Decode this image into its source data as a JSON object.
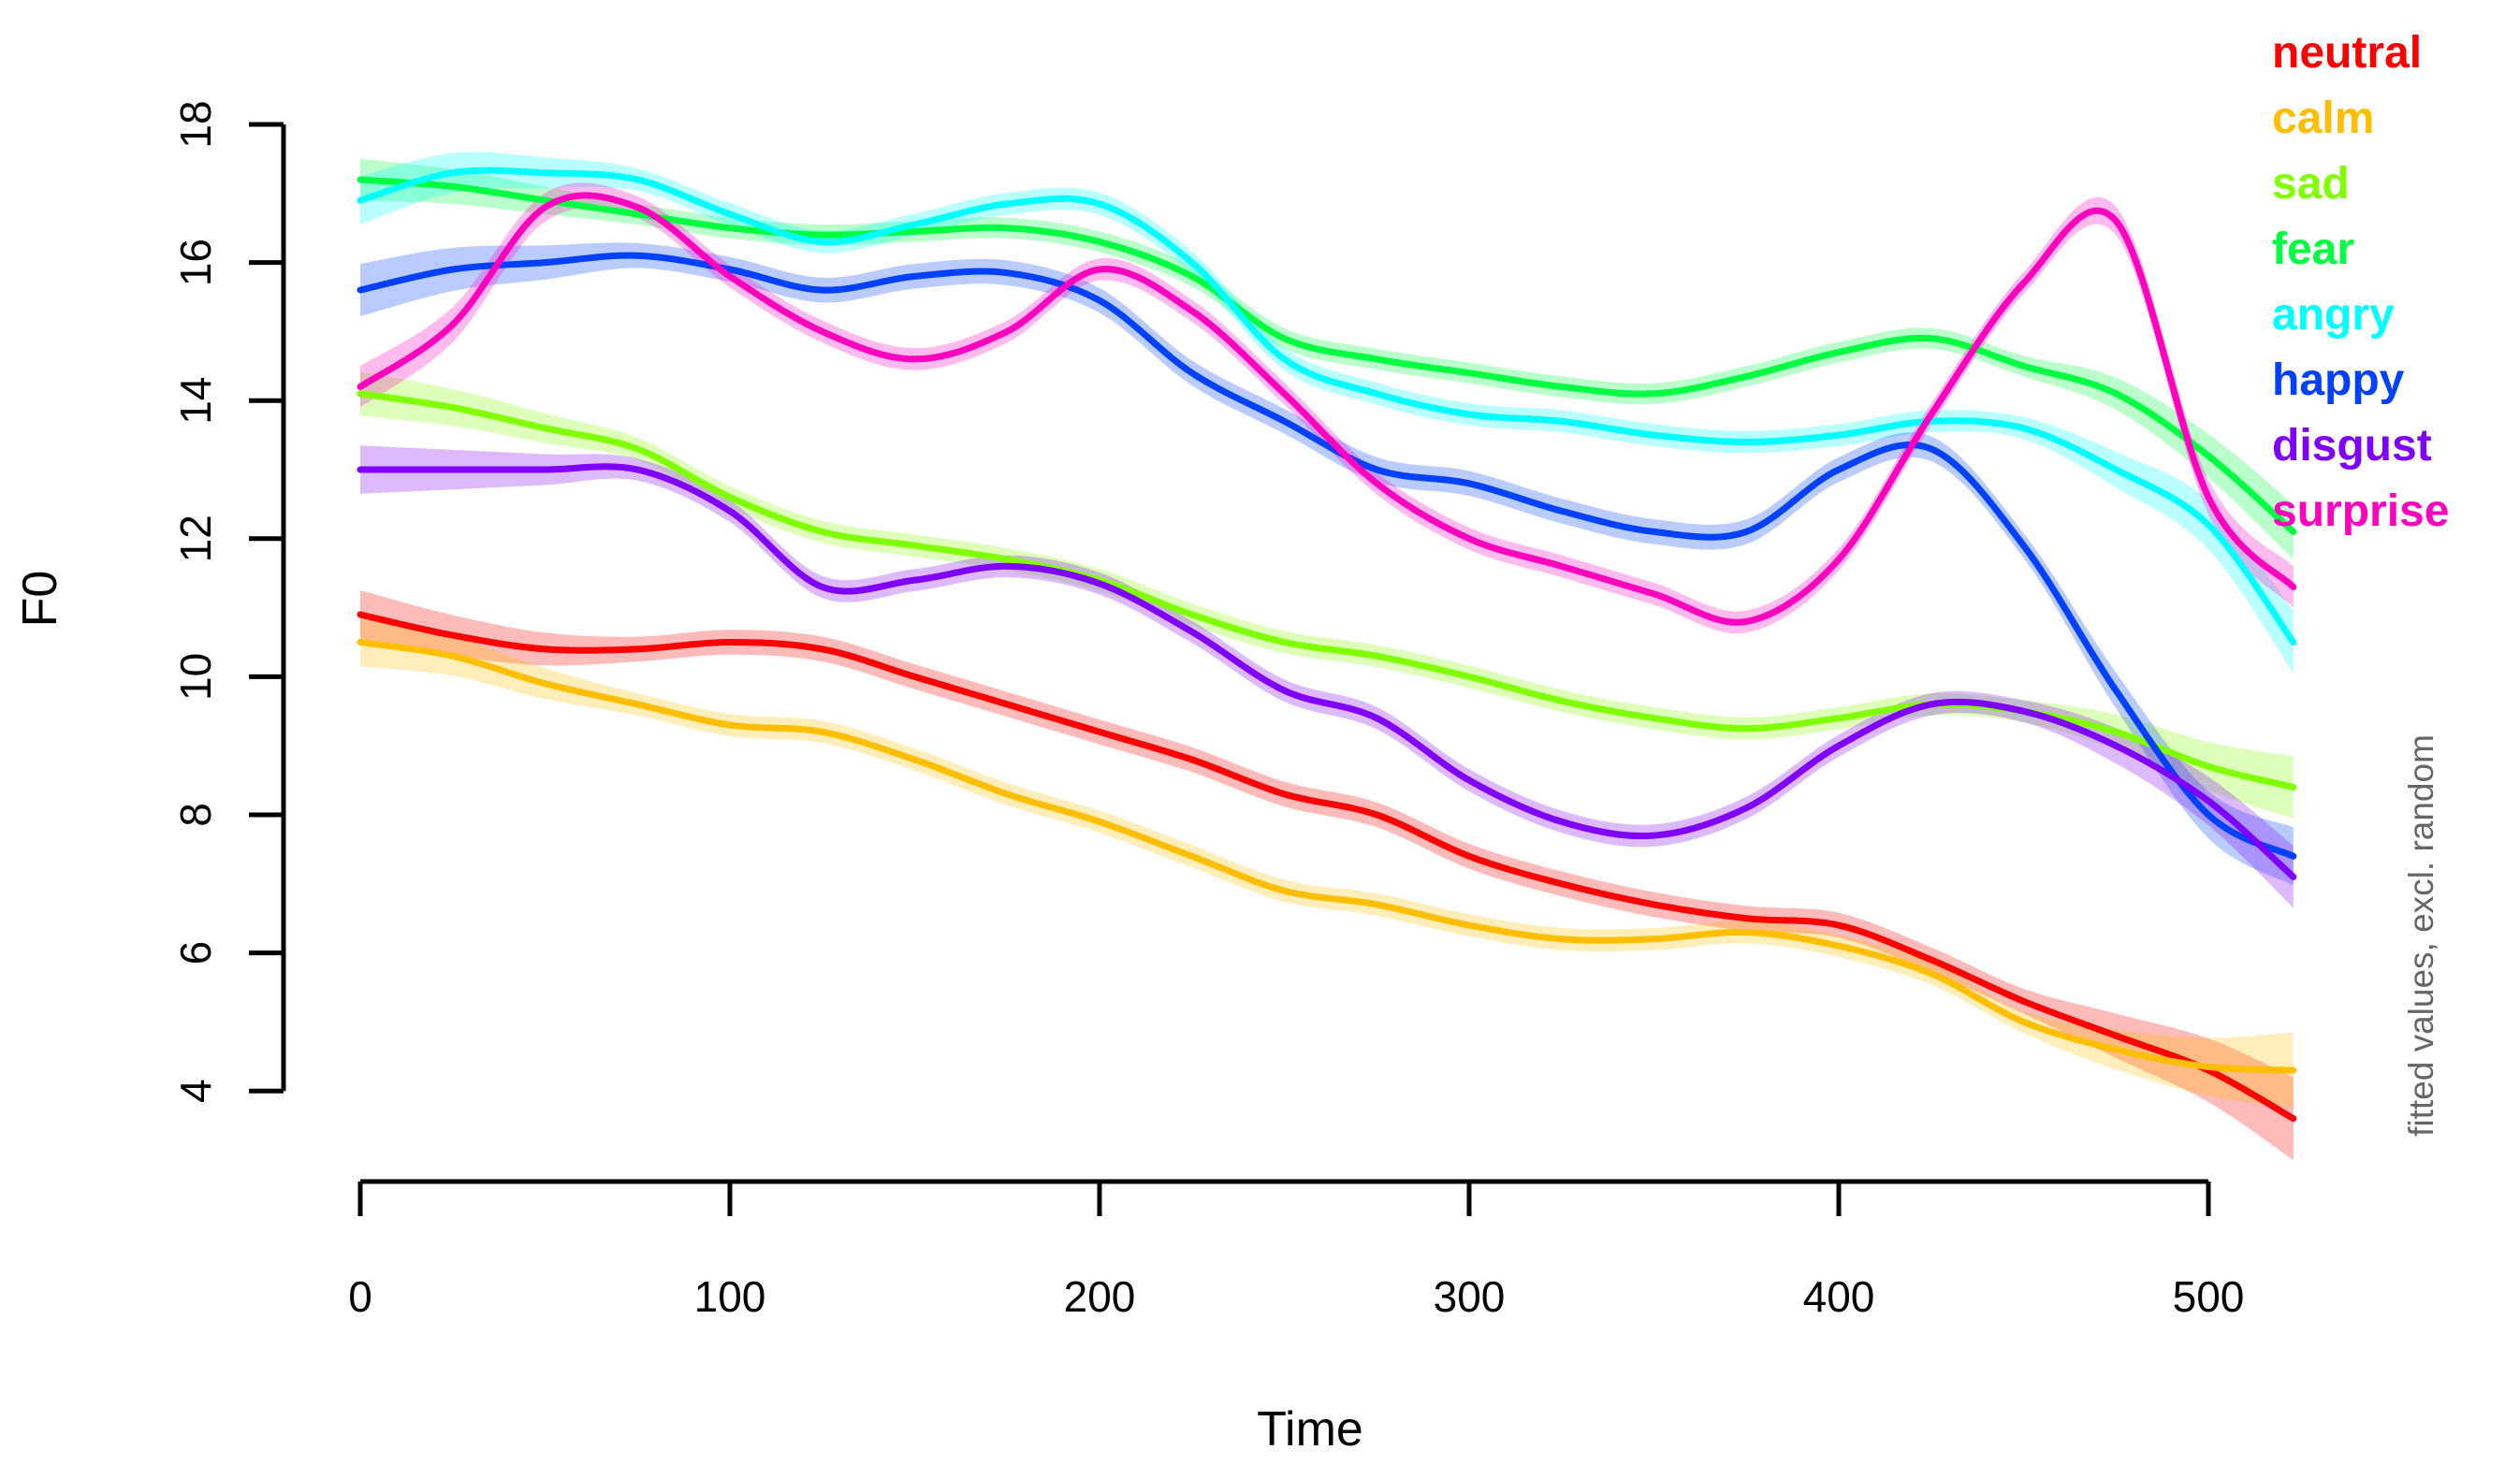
{
  "chart_data": {
    "type": "line",
    "title": "",
    "xlabel": "Time",
    "ylabel": "F0",
    "right_caption": "fitted values, excl. random",
    "x_ticks": [
      0,
      100,
      200,
      300,
      400,
      500
    ],
    "y_ticks": [
      4,
      6,
      8,
      10,
      12,
      14,
      16,
      18
    ],
    "xlim": [
      0,
      525
    ],
    "ylim": [
      4,
      18
    ],
    "grid": false,
    "legend_position": "top-right",
    "axis_color": "#000000",
    "caption_color": "#666666",
    "x": [
      0,
      25,
      50,
      75,
      100,
      125,
      150,
      175,
      200,
      225,
      250,
      275,
      300,
      325,
      350,
      375,
      400,
      425,
      450,
      475,
      500,
      523
    ],
    "series": [
      {
        "name": "neutral",
        "color": "#FF0000",
        "values": [
          10.9,
          10.6,
          10.4,
          10.4,
          10.5,
          10.4,
          10.0,
          9.6,
          9.2,
          8.8,
          8.3,
          8.0,
          7.4,
          7.0,
          6.7,
          6.5,
          6.4,
          5.9,
          5.3,
          4.8,
          4.3,
          3.6
        ],
        "band": {
          "start": 0.35,
          "mid": 0.18,
          "end": 0.6
        }
      },
      {
        "name": "calm",
        "color": "#FFBF00",
        "values": [
          10.5,
          10.3,
          9.9,
          9.6,
          9.3,
          9.2,
          8.8,
          8.3,
          7.9,
          7.4,
          6.9,
          6.7,
          6.4,
          6.2,
          6.2,
          6.3,
          6.1,
          5.7,
          5.0,
          4.6,
          4.35,
          4.3
        ],
        "band": {
          "start": 0.35,
          "mid": 0.16,
          "end": 0.55
        }
      },
      {
        "name": "sad",
        "color": "#80FF00",
        "values": [
          14.1,
          13.9,
          13.6,
          13.3,
          12.6,
          12.1,
          11.9,
          11.7,
          11.4,
          10.9,
          10.5,
          10.3,
          10.0,
          9.65,
          9.4,
          9.25,
          9.4,
          9.6,
          9.5,
          9.2,
          8.7,
          8.4
        ],
        "band": {
          "start": 0.32,
          "mid": 0.16,
          "end": 0.45
        }
      },
      {
        "name": "fear",
        "color": "#00FF40",
        "values": [
          17.2,
          17.1,
          16.9,
          16.7,
          16.5,
          16.4,
          16.45,
          16.5,
          16.3,
          15.8,
          14.9,
          14.6,
          14.4,
          14.2,
          14.1,
          14.35,
          14.7,
          14.9,
          14.5,
          14.1,
          13.2,
          12.1
        ],
        "band": {
          "start": 0.3,
          "mid": 0.15,
          "end": 0.4
        }
      },
      {
        "name": "angry",
        "color": "#00FFFF",
        "values": [
          16.9,
          17.3,
          17.3,
          17.2,
          16.7,
          16.3,
          16.55,
          16.85,
          16.85,
          16.0,
          14.6,
          14.1,
          13.8,
          13.7,
          13.5,
          13.4,
          13.5,
          13.7,
          13.6,
          13.0,
          12.2,
          10.5
        ],
        "band": {
          "start": 0.35,
          "mid": 0.16,
          "end": 0.45
        }
      },
      {
        "name": "happy",
        "color": "#0040FF",
        "values": [
          15.6,
          15.9,
          16.0,
          16.1,
          15.9,
          15.6,
          15.8,
          15.85,
          15.45,
          14.4,
          13.7,
          13.0,
          12.8,
          12.4,
          12.1,
          12.1,
          13.0,
          13.3,
          11.9,
          9.8,
          8.0,
          7.4
        ],
        "band": {
          "start": 0.38,
          "mid": 0.18,
          "end": 0.42
        }
      },
      {
        "name": "disgust",
        "color": "#8000FF",
        "values": [
          13.0,
          13.0,
          13.0,
          13.0,
          12.4,
          11.3,
          11.4,
          11.6,
          11.35,
          10.65,
          9.8,
          9.4,
          8.5,
          7.9,
          7.7,
          8.1,
          9.0,
          9.6,
          9.5,
          9.0,
          8.2,
          7.1
        ],
        "band": {
          "start": 0.35,
          "mid": 0.16,
          "end": 0.45
        }
      },
      {
        "name": "surprise",
        "color": "#FF00BF",
        "values": [
          14.2,
          15.1,
          16.8,
          16.8,
          15.8,
          15.0,
          14.6,
          15.0,
          15.9,
          15.3,
          14.1,
          12.8,
          12.0,
          11.6,
          11.2,
          10.8,
          11.7,
          13.8,
          15.7,
          16.6,
          12.6,
          11.3
        ],
        "band": {
          "start": 0.3,
          "mid": 0.16,
          "end": 0.3
        }
      }
    ]
  }
}
